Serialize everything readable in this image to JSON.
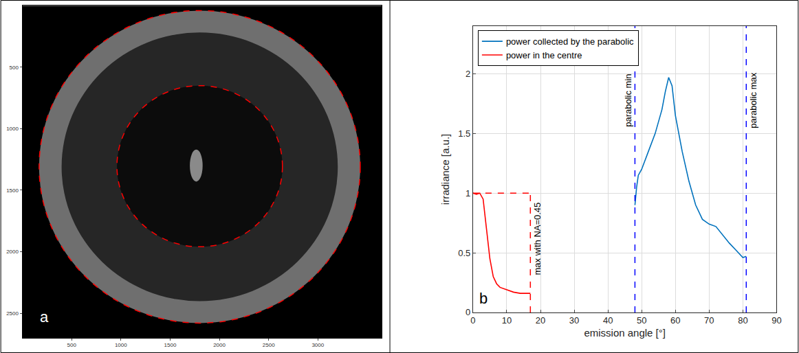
{
  "chart_data": [
    {
      "type": "image",
      "panel": "a",
      "xlim": [
        0,
        3650
      ],
      "ylim": [
        2700,
        0
      ],
      "xticks": [
        500,
        1000,
        1500,
        2000,
        2500,
        3000
      ],
      "yticks": [
        500,
        1000,
        1500,
        2000,
        2500
      ],
      "circles": [
        {
          "x": [
            170,
            3430
          ],
          "y": [
            40,
            2580
          ],
          "color": "#ff0000",
          "line_style": "dashed"
        },
        {
          "x": [
            960,
            2640
          ],
          "y": [
            650,
            1960
          ],
          "color": "#ff0000",
          "line_style": "dashed"
        }
      ],
      "spot": {
        "x": [
          1700,
          1830
        ],
        "y": [
          1170,
          1430
        ]
      }
    },
    {
      "type": "line",
      "panel": "b",
      "xlabel": "emission angle [°]",
      "ylabel": "irradiance [a.u.]",
      "xlim": [
        0,
        90
      ],
      "ylim": [
        0,
        2.4
      ],
      "xticks": [
        0,
        10,
        20,
        30,
        40,
        50,
        60,
        70,
        80,
        90
      ],
      "yticks": [
        0,
        0.5,
        1,
        1.5,
        2
      ],
      "grid": true,
      "legend": "upper left",
      "series": [
        {
          "name": "power collected by the parabolic",
          "color": "#0072bd",
          "x": [
            48,
            48.5,
            49,
            50,
            52,
            54,
            56,
            57,
            58,
            59,
            60,
            62,
            64,
            66,
            68,
            70,
            72,
            74,
            76,
            78,
            80,
            81
          ],
          "values": [
            0.9,
            1.05,
            1.15,
            1.2,
            1.35,
            1.5,
            1.7,
            1.85,
            1.97,
            1.9,
            1.65,
            1.35,
            1.1,
            0.9,
            0.78,
            0.74,
            0.72,
            0.65,
            0.58,
            0.52,
            0.46,
            0.47
          ]
        },
        {
          "name": "power in the centre",
          "color": "#ff0000",
          "x": [
            0,
            1,
            2,
            3,
            4,
            5,
            6,
            7,
            8,
            10,
            12,
            14,
            16,
            17
          ],
          "values": [
            1,
            0.99,
            1,
            0.95,
            0.7,
            0.45,
            0.3,
            0.24,
            0.21,
            0.19,
            0.17,
            0.16,
            0.16,
            0.16
          ]
        }
      ],
      "reference_lines": [
        {
          "label": "max with NA=0.45",
          "x": 17,
          "y": 1,
          "color": "#ff0000",
          "line_style": "dashed"
        },
        {
          "label": "parabolic min",
          "x": 48,
          "color": "#0000ff",
          "line_style": "dashed"
        },
        {
          "label": "parabolic max",
          "x": 81,
          "color": "#0000ff",
          "line_style": "dashed"
        }
      ]
    }
  ]
}
